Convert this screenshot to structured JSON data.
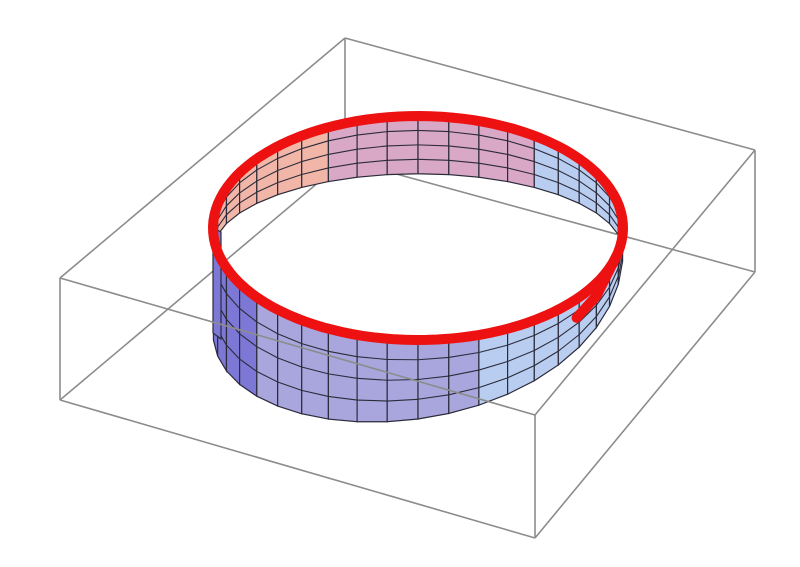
{
  "figure": {
    "subject": "mobius-strip-plot",
    "colors": {
      "background": "#ffffff",
      "bounding_box": "#8c8c8c",
      "mesh_lines": "#2b2b3a",
      "boundary_curve": "#ee1111",
      "surface_warm": "#f2b6a8",
      "surface_pink": "#d9a8c6",
      "surface_lavender": "#a9a6de",
      "surface_blue": "#7d78d6",
      "surface_light_blue": "#b9cdf0"
    },
    "mesh": {
      "u_divisions": 40,
      "v_divisions": 4
    }
  }
}
